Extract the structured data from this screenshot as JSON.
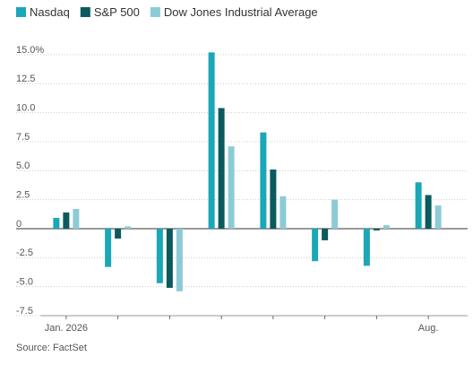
{
  "chart_data": {
    "type": "bar",
    "categories": [
      "Jan. 2026",
      null,
      null,
      null,
      null,
      null,
      null,
      "Aug."
    ],
    "series": [
      {
        "name": "Nasdaq",
        "color": "#1aa7b8",
        "values": [
          0.93,
          -3.3,
          -4.7,
          15.2,
          8.3,
          -2.8,
          -3.2,
          4.0
        ]
      },
      {
        "name": "S&P 500",
        "color": "#0b5a5e",
        "values": [
          1.4,
          -0.85,
          -5.1,
          10.4,
          5.1,
          -1.0,
          -0.15,
          2.9
        ]
      },
      {
        "name": "Dow Jones Industrial Average",
        "color": "#8ccbd6",
        "values": [
          1.7,
          0.2,
          -5.4,
          7.1,
          2.8,
          2.5,
          0.3,
          2.0
        ]
      }
    ],
    "ylim": [
      -7.5,
      15.0
    ],
    "yticks": [
      {
        "value": 15,
        "label": "15.0%"
      },
      12.5,
      {
        "value": 10,
        "label": "10.0"
      },
      7.5,
      {
        "value": 5,
        "label": "5.0"
      },
      2.5,
      0,
      -2.5,
      {
        "value": -5,
        "label": "-5.0"
      },
      -7.5
    ],
    "grid": true,
    "legend": "top",
    "source": "Source: FactSet"
  }
}
